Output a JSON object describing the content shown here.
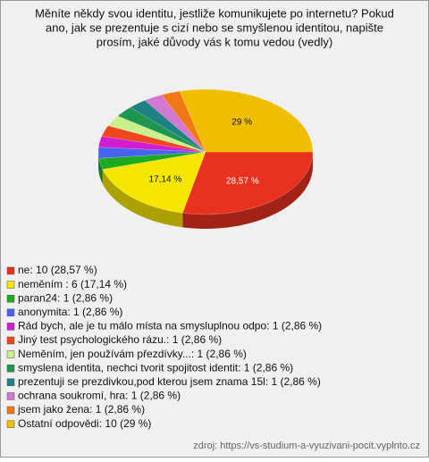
{
  "chart_data": {
    "type": "pie",
    "title_lines": [
      "Měníte někdy svou identitu, jestliže komunikujete po internetu? Pokud",
      "ano, jak se prezentuje s cizí nebo se smyšlenou identitou, napište",
      "prosím, jaké důvody vás k tomu vedou (vedly)"
    ],
    "categories": [
      "ne: 10 (28,57 %)",
      "neměním : 6 (17,14 %)",
      "paran24: 1 (2,86 %)",
      "anonymita: 1 (2,86 %)",
      "Rád bych, ale je tu málo místa na smysluplnou odpo: 1 (2,86 %)",
      "Jiný test psychologického rázu.: 1 (2,86 %)",
      "Neměním, jen používám přezdívky...: 1 (2,86 %)",
      "smyslena identita, nechci tvorit spojitost identit: 1 (2,86 %)",
      "prezentuji se prezdivkou,pod kterou jsem znama 15l: 1 (2,86 %)",
      "ochrana soukromí, hra: 1 (2,86 %)",
      "jsem jako žena: 1 (2,86 %)",
      "Ostatní odpovědi: 10 (29 %)"
    ],
    "values": [
      28.57,
      17.14,
      2.86,
      2.86,
      2.86,
      2.86,
      2.86,
      2.86,
      2.86,
      2.86,
      2.86,
      29
    ],
    "value_labels": [
      "28,57 %",
      "17,14 %",
      null,
      null,
      null,
      null,
      null,
      null,
      null,
      null,
      null,
      "29 %"
    ],
    "colors": [
      "#e8321e",
      "#f5e600",
      "#1eaa1e",
      "#4664f0",
      "#d21ed2",
      "#f0461e",
      "#c8f08c",
      "#1e9650",
      "#1e8282",
      "#d278d2",
      "#f07814",
      "#f0be00"
    ],
    "source": "zdroj: https://vs-studium-a-vyuzivani-pocit.vyplnto.cz"
  }
}
